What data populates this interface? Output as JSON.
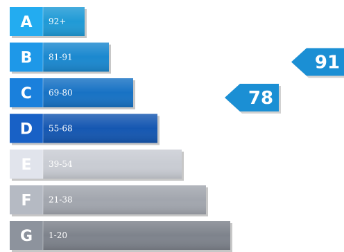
{
  "chart_data": {
    "type": "bar",
    "bands": [
      {
        "letter": "A",
        "range": "92+",
        "min": 92,
        "max": 100,
        "color": "#1f9ad6"
      },
      {
        "letter": "B",
        "range": "81-91",
        "min": 81,
        "max": 91,
        "color": "#1b88cf"
      },
      {
        "letter": "C",
        "range": "69-80",
        "min": 69,
        "max": 80,
        "color": "#1772c4"
      },
      {
        "letter": "D",
        "range": "55-68",
        "min": 55,
        "max": 68,
        "color": "#1557b1"
      },
      {
        "letter": "E",
        "range": "39-54",
        "min": 39,
        "max": 54,
        "color": "#c9ccd3"
      },
      {
        "letter": "F",
        "range": "21-38",
        "min": 21,
        "max": 38,
        "color": "#a2a6ae"
      },
      {
        "letter": "G",
        "range": "1-20",
        "min": 1,
        "max": 20,
        "color": "#7e838c"
      }
    ],
    "pointers": [
      {
        "label": "91",
        "value": 91,
        "band": "B",
        "color": "#1b8fd4"
      },
      {
        "label": "78",
        "value": 78,
        "band": "C",
        "color": "#1b8fd4"
      }
    ]
  }
}
